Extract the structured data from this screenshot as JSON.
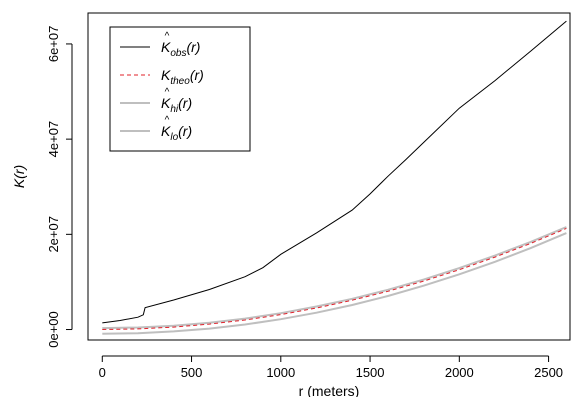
{
  "chart_data": {
    "type": "line",
    "title": "",
    "xlabel": "r (meters)",
    "ylabel": "K(r)",
    "xlim": [
      -80,
      2620
    ],
    "ylim": [
      -2200000,
      66500000
    ],
    "x_ticks": [
      {
        "value": 0,
        "label": "0"
      },
      {
        "value": 500,
        "label": "500"
      },
      {
        "value": 1000,
        "label": "1000"
      },
      {
        "value": 1500,
        "label": "1500"
      },
      {
        "value": 2000,
        "label": "2000"
      },
      {
        "value": 2500,
        "label": "2500"
      }
    ],
    "y_ticks": [
      {
        "value": 0,
        "label": "0e+00"
      },
      {
        "value": 20000000,
        "label": "2e+07"
      },
      {
        "value": 40000000,
        "label": "4e+07"
      },
      {
        "value": 60000000,
        "label": "6e+07"
      }
    ],
    "grid": false,
    "legend_position": "top-left",
    "series": [
      {
        "key": "hi",
        "name_main": "K",
        "name_hat": "^",
        "name_sub": "hi",
        "name_arg": "(r)",
        "color": "#bfbfbf",
        "dash": "",
        "width": 2,
        "x": [
          0,
          200,
          400,
          600,
          800,
          1000,
          1200,
          1400,
          1600,
          1800,
          2000,
          2200,
          2400,
          2600
        ],
        "y": [
          300000,
          430000,
          800000,
          1430000,
          2300000,
          3440000,
          4830000,
          6460000,
          8350000,
          10500000,
          12900000,
          15530000,
          18400000,
          21550000
        ]
      },
      {
        "key": "lo",
        "name_main": "K",
        "name_hat": "^",
        "name_sub": "lo",
        "name_arg": "(r)",
        "color": "#bfbfbf",
        "dash": "",
        "width": 2,
        "x": [
          0,
          200,
          400,
          600,
          800,
          1000,
          1200,
          1400,
          1600,
          1800,
          2000,
          2200,
          2400,
          2600
        ],
        "y": [
          -900000,
          -770000,
          -400000,
          200000,
          1050000,
          2160000,
          3530000,
          5160000,
          7050000,
          9200000,
          11600000,
          14230000,
          17100000,
          20250000
        ]
      },
      {
        "key": "theo",
        "name_main": "K",
        "name_hat": "",
        "name_sub": "theo",
        "name_arg": "(r)",
        "color": "#e0202a",
        "dash": "4,3",
        "width": 1,
        "x": [
          0,
          200,
          400,
          600,
          800,
          1000,
          1200,
          1400,
          1600,
          1800,
          2000,
          2200,
          2400,
          2600
        ],
        "y": [
          0,
          130000,
          500000,
          1130000,
          2010000,
          3140000,
          4520000,
          6160000,
          8040000,
          10180000,
          12570000,
          15210000,
          18100000,
          21240000
        ]
      },
      {
        "key": "obs",
        "name_main": "K",
        "name_hat": "^",
        "name_sub": "obs",
        "name_arg": "(r)",
        "color": "#000000",
        "dash": "",
        "width": 1,
        "x": [
          0,
          100,
          200,
          230,
          240,
          400,
          600,
          800,
          900,
          1000,
          1200,
          1400,
          1500,
          1600,
          1700,
          1800,
          2000,
          2200,
          2400,
          2600
        ],
        "y": [
          1400000,
          1900000,
          2600000,
          3100000,
          4600000,
          6200000,
          8400000,
          11100000,
          13000000,
          15800000,
          20300000,
          25100000,
          28500000,
          32200000,
          35700000,
          39300000,
          46500000,
          52300000,
          58500000,
          64800000
        ]
      }
    ]
  }
}
